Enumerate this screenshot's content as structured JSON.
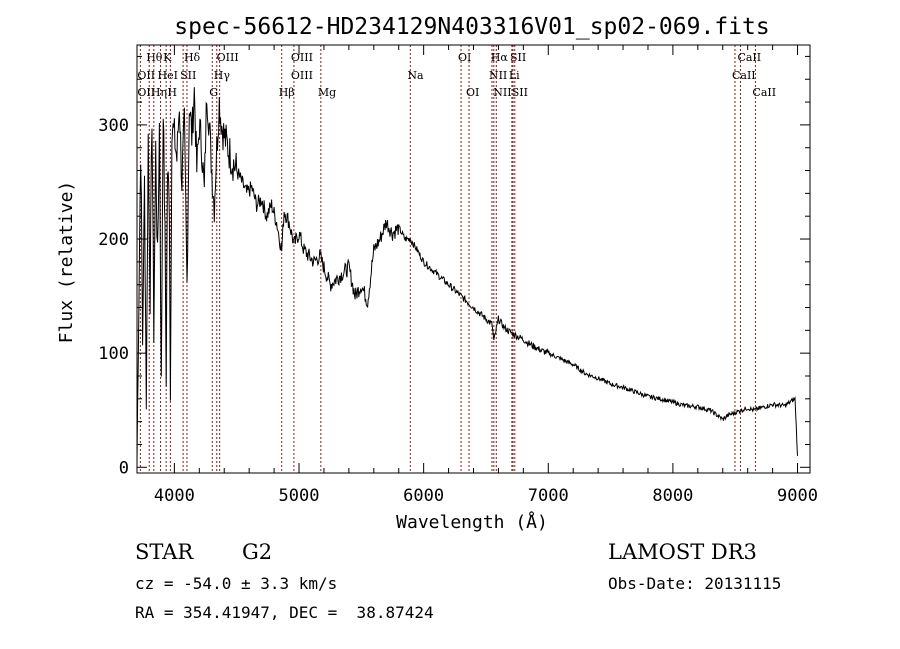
{
  "chart_data": {
    "type": "line",
    "title": "spec-56612-HD234129N403316V01_sp02-069.fits",
    "xlabel": "Wavelength (Å)",
    "ylabel": "Flux (relative)",
    "xlim": [
      3700,
      9100
    ],
    "ylim": [
      -5,
      370
    ],
    "x_ticks": [
      4000,
      5000,
      6000,
      7000,
      8000,
      9000
    ],
    "y_ticks": [
      0,
      100,
      200,
      300
    ],
    "grid": false,
    "line_color": "#000000",
    "marker_color": "#8b1a1a",
    "series": [
      {
        "x": [
          3700,
          3715,
          3730,
          3745,
          3760,
          3775,
          3790,
          3805,
          3820,
          3835,
          3850,
          3865,
          3880,
          3895,
          3910,
          3925,
          3934,
          3945,
          3960,
          3968,
          3980,
          4000,
          4020,
          4040,
          4060,
          4080,
          4101,
          4120,
          4140,
          4160,
          4180,
          4200,
          4220,
          4240,
          4260,
          4280,
          4300,
          4320,
          4340,
          4360,
          4380,
          4400,
          4430,
          4460,
          4500,
          4540,
          4580,
          4620,
          4660,
          4700,
          4740,
          4780,
          4820,
          4861,
          4880,
          4920,
          4960,
          5000,
          5040,
          5080,
          5120,
          5167,
          5200,
          5250,
          5300,
          5350,
          5400,
          5450,
          5500,
          5550,
          5600,
          5650,
          5700,
          5750,
          5800,
          5850,
          5893,
          5950,
          6000,
          6050,
          6100,
          6150,
          6200,
          6250,
          6300,
          6350,
          6400,
          6450,
          6500,
          6550,
          6563,
          6600,
          6650,
          6700,
          6750,
          6800,
          6850,
          6900,
          6950,
          7000,
          7100,
          7200,
          7300,
          7400,
          7500,
          7600,
          7700,
          7800,
          7900,
          8000,
          8100,
          8200,
          8300,
          8400,
          8450,
          8500,
          8550,
          8600,
          8650,
          8700,
          8800,
          8900,
          8950,
          8980,
          9000
        ],
        "y": [
          5,
          150,
          280,
          110,
          250,
          60,
          290,
          150,
          310,
          120,
          280,
          180,
          300,
          70,
          320,
          200,
          80,
          260,
          230,
          60,
          300,
          290,
          270,
          320,
          250,
          300,
          160,
          320,
          290,
          330,
          260,
          300,
          280,
          240,
          330,
          300,
          260,
          230,
          280,
          320,
          300,
          290,
          280,
          270,
          260,
          250,
          240,
          245,
          230,
          235,
          220,
          230,
          215,
          190,
          225,
          215,
          195,
          205,
          190,
          185,
          180,
          185,
          175,
          160,
          165,
          170,
          175,
          150,
          160,
          145,
          190,
          200,
          215,
          205,
          210,
          200,
          200,
          190,
          180,
          175,
          170,
          165,
          160,
          155,
          150,
          145,
          140,
          135,
          130,
          125,
          110,
          130,
          122,
          118,
          115,
          112,
          108,
          105,
          102,
          100,
          95,
          90,
          82,
          78,
          73,
          70,
          66,
          62,
          60,
          57,
          54,
          53,
          50,
          42,
          46,
          48,
          50,
          52,
          50,
          52,
          55,
          54,
          58,
          60,
          10
        ]
      }
    ],
    "lines_top": [
      {
        "label": "Hθ",
        "x": 3798,
        "row": 0
      },
      {
        "label": "K",
        "x": 3934,
        "row": 0
      },
      {
        "label": "Hδ",
        "x": 4101,
        "row": 0
      },
      {
        "label": "OIII",
        "x": 4363,
        "row": 0
      },
      {
        "label": "OIII",
        "x": 4959,
        "row": 0
      },
      {
        "label": "OI",
        "x": 6300,
        "row": 0
      },
      {
        "label": "Hα",
        "x": 6563,
        "row": 0
      },
      {
        "label": "SII",
        "x": 6717,
        "row": 0
      },
      {
        "label": "CaII",
        "x": 8542,
        "row": 0
      },
      {
        "label": "OII",
        "x": 3727,
        "row": 1
      },
      {
        "label": "HeI",
        "x": 3889,
        "row": 1
      },
      {
        "label": "SII",
        "x": 4070,
        "row": 1
      },
      {
        "label": "Hγ",
        "x": 4340,
        "row": 1
      },
      {
        "label": "OIII",
        "x": 4959,
        "row": 1
      },
      {
        "label": "Na",
        "x": 5893,
        "row": 1
      },
      {
        "label": "NII",
        "x": 6548,
        "row": 1
      },
      {
        "label": "Li",
        "x": 6708,
        "row": 1
      },
      {
        "label": "CaII",
        "x": 8498,
        "row": 1
      },
      {
        "label": "OII",
        "x": 3727,
        "row": 2
      },
      {
        "label": "Hη",
        "x": 3835,
        "row": 2
      },
      {
        "label": "H",
        "x": 3968,
        "row": 2
      },
      {
        "label": "G",
        "x": 4304,
        "row": 2
      },
      {
        "label": "Hβ",
        "x": 4861,
        "row": 2
      },
      {
        "label": "Mg",
        "x": 5175,
        "row": 2
      },
      {
        "label": "OI",
        "x": 6364,
        "row": 2
      },
      {
        "label": "NII",
        "x": 6583,
        "row": 2
      },
      {
        "label": "SII",
        "x": 6731,
        "row": 2
      },
      {
        "label": "CaII",
        "x": 8662,
        "row": 2
      }
    ]
  },
  "info": {
    "class_label": "STAR",
    "subclass": "G2",
    "survey": "LAMOST DR3",
    "cz": "cz = -54.0 ± 3.3 km/s",
    "obs_date": "Obs-Date: 20131115",
    "radec": "RA = 354.41947, DEC =  38.87424"
  }
}
